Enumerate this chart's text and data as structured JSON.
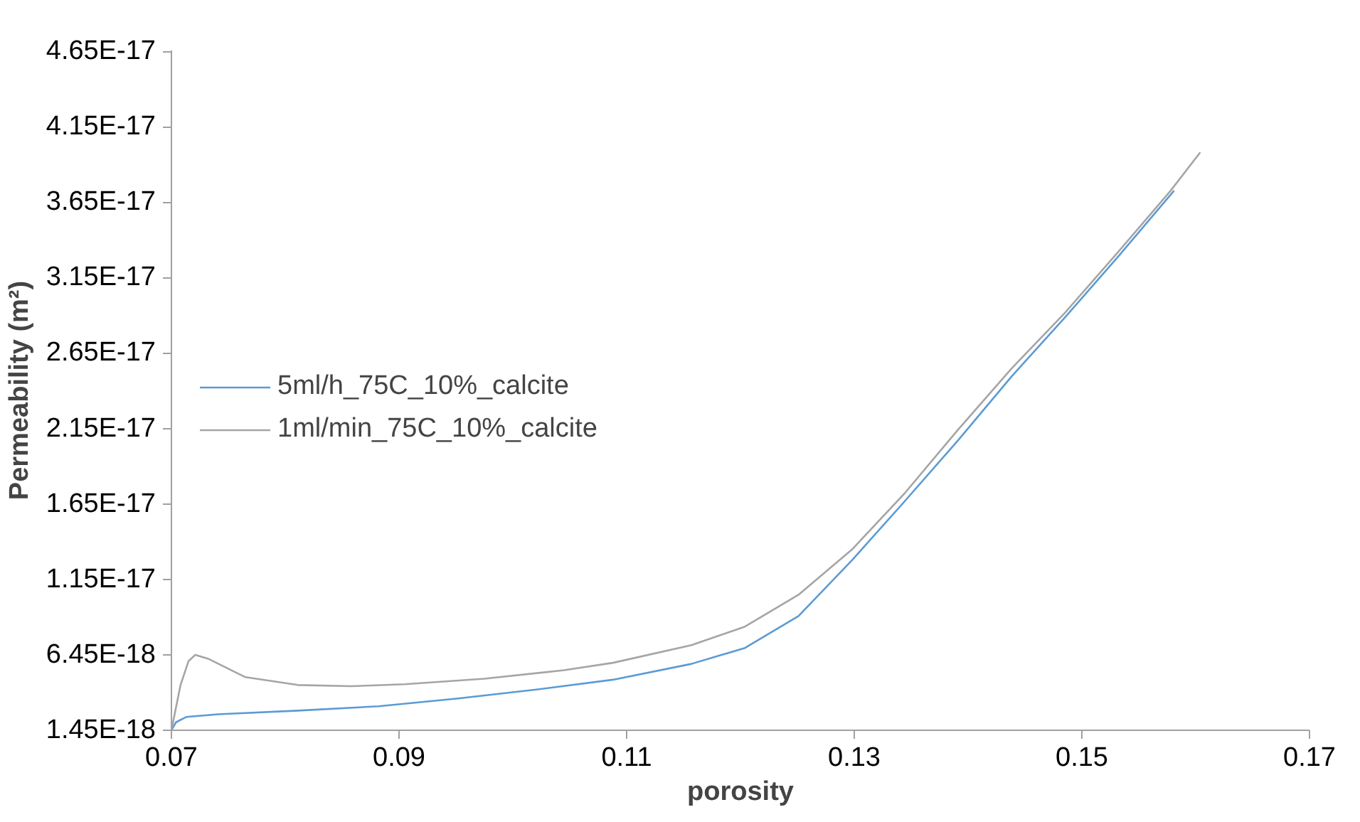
{
  "chart_data": {
    "type": "line",
    "xlabel": "porosity",
    "ylabel": "Permeability (m²)",
    "xlim": [
      0.07,
      0.17
    ],
    "xticks": [
      0.07,
      0.09,
      0.11,
      0.13,
      0.15,
      0.17
    ],
    "ylim": [
      1.45e-18,
      4.65e-17
    ],
    "yticks": [
      {
        "value": 1.45e-18,
        "label": "1.45E-18"
      },
      {
        "value": 6.45e-18,
        "label": "6.45E-18"
      },
      {
        "value": 1.145e-17,
        "label": "1.15E-17"
      },
      {
        "value": 1.645e-17,
        "label": "1.65E-17"
      },
      {
        "value": 2.145e-17,
        "label": "2.15E-17"
      },
      {
        "value": 2.645e-17,
        "label": "2.65E-17"
      },
      {
        "value": 3.145e-17,
        "label": "3.15E-17"
      },
      {
        "value": 3.645e-17,
        "label": "3.65E-17"
      },
      {
        "value": 4.145e-17,
        "label": "4.15E-17"
      },
      {
        "value": 4.645e-17,
        "label": "4.65E-17"
      }
    ],
    "grid": false,
    "legend": "left",
    "marker": "none",
    "line_style": "solid",
    "series": [
      {
        "name": "5ml/h_75C_10%_calcite",
        "color": "#5b9bd5",
        "x": [
          0.07,
          0.0704,
          0.0713,
          0.0741,
          0.0811,
          0.0882,
          0.0952,
          0.1022,
          0.1088,
          0.1157,
          0.1204,
          0.1251,
          0.1298,
          0.1344,
          0.1391,
          0.1438,
          0.1485,
          0.1532,
          0.1581
        ],
        "values": [
          1.45e-18,
          1.98e-18,
          2.33e-18,
          2.51e-18,
          2.75e-18,
          3.04e-18,
          3.56e-18,
          4.16e-18,
          4.8e-18,
          5.85e-18,
          6.91e-18,
          9.02e-18,
          1.272e-17,
          1.66e-17,
          2.065e-17,
          2.488e-17,
          2.88e-17,
          3.285e-17,
          3.721e-17
        ]
      },
      {
        "name": "1ml/min_75C_10%_calcite",
        "color": "#a5a5a5",
        "x": [
          0.07,
          0.0708,
          0.0715,
          0.0721,
          0.0732,
          0.0765,
          0.0811,
          0.0858,
          0.0905,
          0.0975,
          0.1045,
          0.1088,
          0.1157,
          0.1204,
          0.1251,
          0.1298,
          0.1344,
          0.1391,
          0.1438,
          0.1485,
          0.1532,
          0.1578,
          0.1604
        ],
        "values": [
          1.45e-18,
          4.45e-18,
          6.03e-18,
          6.45e-18,
          6.2e-18,
          4.97e-18,
          4.45e-18,
          4.37e-18,
          4.5e-18,
          4.87e-18,
          5.43e-18,
          5.92e-18,
          7.09e-18,
          8.32e-18,
          1.043e-17,
          1.343e-17,
          1.713e-17,
          2.135e-17,
          2.541e-17,
          2.911e-17,
          3.316e-17,
          3.721e-17,
          3.975e-17
        ]
      }
    ]
  }
}
